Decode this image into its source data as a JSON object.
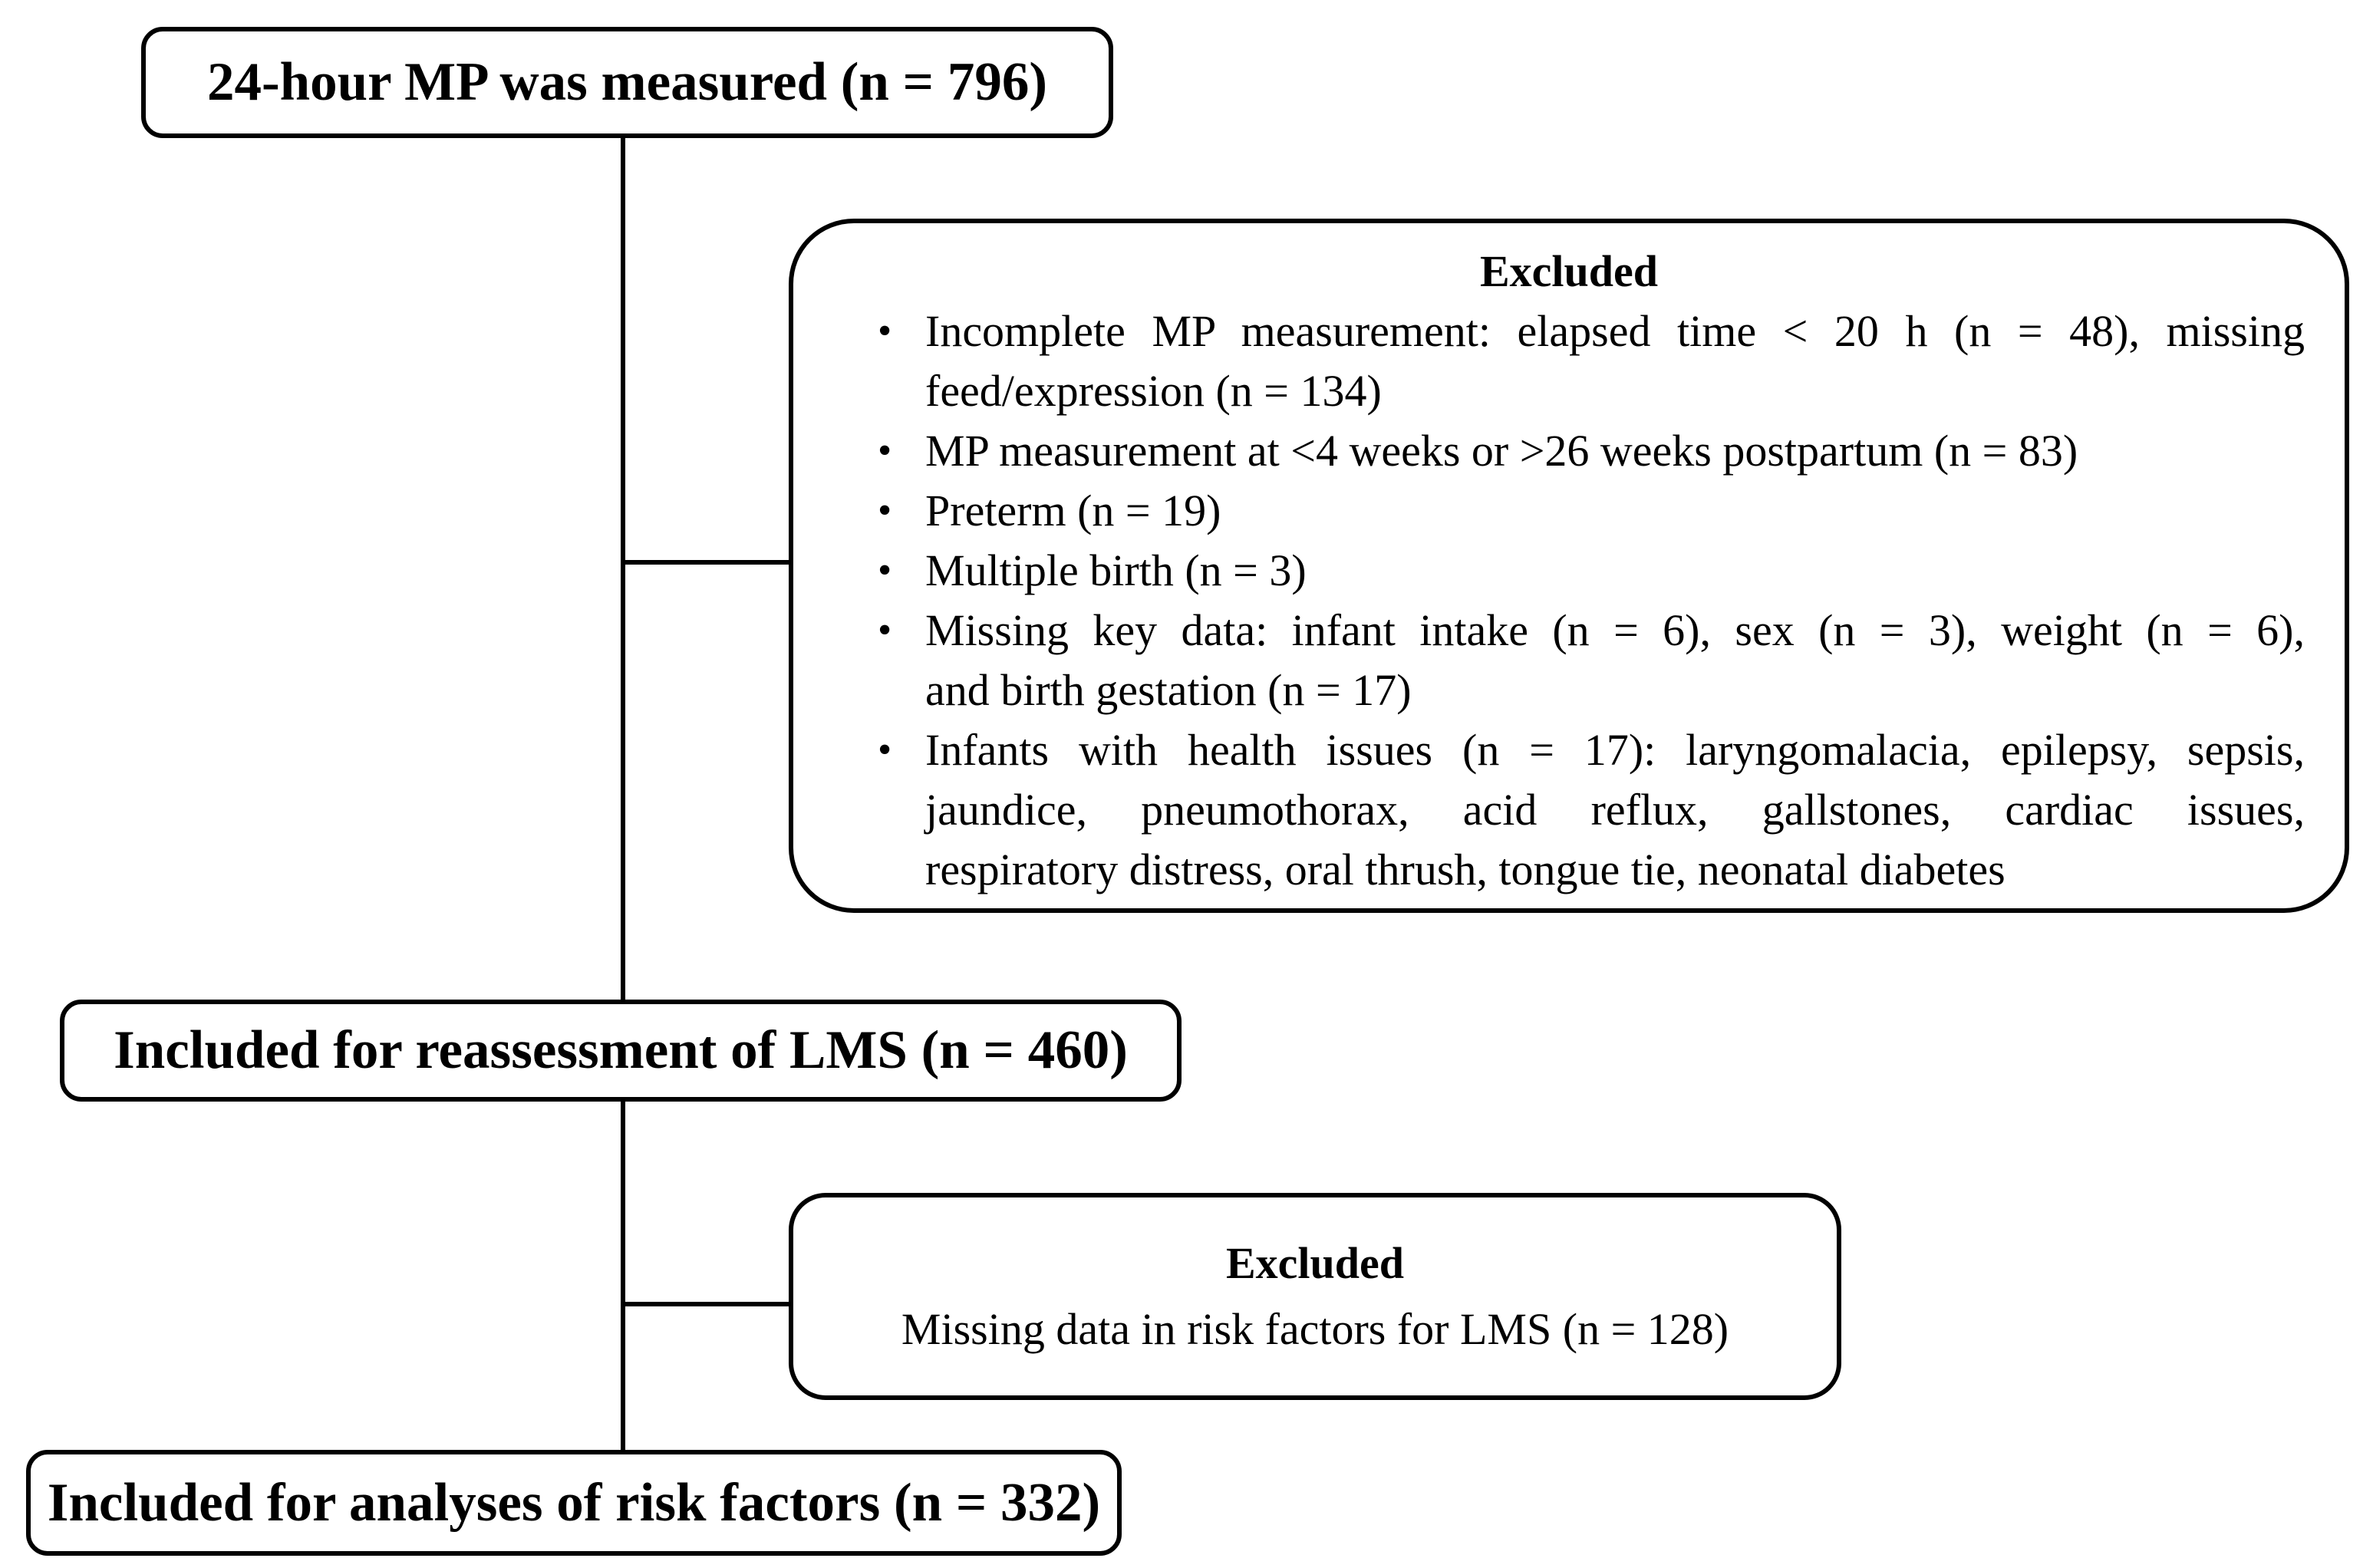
{
  "diagram": {
    "bullet_glyph": "•",
    "colors": {
      "ink": "#000000",
      "background": "#ffffff"
    },
    "enrollment_box": {
      "label": "24-hour MP was measured (n = 796)"
    },
    "excluded_box_1": {
      "title": "Excluded",
      "items": [
        {
          "lines": [
            "Incomplete MP measurement: elapsed time < 20 h (n = 48), missing",
            "feed/expression (n = 134)"
          ]
        },
        {
          "lines": [
            "MP measurement at <4 weeks or >26 weeks postpartum (n = 83)"
          ]
        },
        {
          "lines": [
            "Preterm (n = 19)"
          ]
        },
        {
          "lines": [
            "Multiple birth (n = 3)"
          ]
        },
        {
          "lines": [
            "Missing key data: infant intake (n = 6), sex (n = 3), weight (n = 6),",
            "and birth gestation (n = 17)"
          ]
        },
        {
          "lines": [
            "Infants with health issues (n = 17): laryngomalacia, epilepsy, sepsis,",
            "jaundice, pneumothorax, acid reflux, gallstones, cardiac issues,",
            "respiratory distress, oral thrush, tongue tie, neonatal diabetes"
          ]
        }
      ]
    },
    "reassessment_box": {
      "label": "Included for reassessment of LMS (n = 460)"
    },
    "excluded_box_2": {
      "title": "Excluded",
      "line": "Missing data in risk factors for LMS (n = 128)"
    },
    "analysis_box": {
      "label": "Included for analyses of risk factors (n = 332)"
    }
  }
}
